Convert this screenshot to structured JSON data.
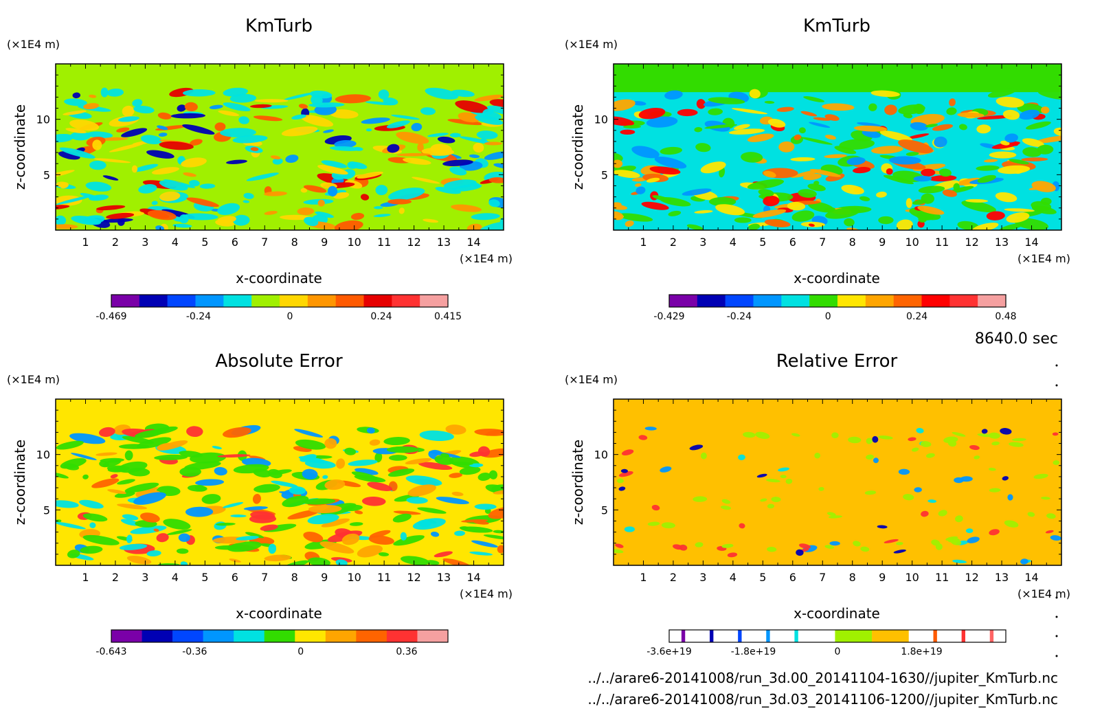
{
  "chart_data": [
    {
      "type": "heatmap",
      "title": "KmTurb",
      "xlabel": "x-coordinate",
      "ylabel": "z-coordinate",
      "x_unit": "(×1E4 m)",
      "y_unit": "(×1E4 m)",
      "xlim": [
        0,
        15
      ],
      "ylim": [
        0,
        15
      ],
      "x_ticks": [
        "1",
        "2",
        "3",
        "4",
        "5",
        "6",
        "7",
        "8",
        "9",
        "10",
        "11",
        "12",
        "13",
        "14"
      ],
      "y_ticks": [
        "5",
        "10"
      ],
      "colorbar": {
        "colors": [
          "#7a00a8",
          "#0000b4",
          "#0046ff",
          "#0096ff",
          "#00e1e1",
          "#a0f000",
          "#ffd700",
          "#ff9600",
          "#ff5a00",
          "#e60000",
          "#ff3232",
          "#f5a0a0"
        ],
        "labels": [
          "-0.469",
          "-0.24",
          "0",
          "0.24",
          "0.415"
        ],
        "range": [
          -0.469,
          0.415
        ]
      },
      "background": "#a0f000",
      "top_band_color": "#a0f000",
      "pattern_colors": [
        "#00e1e1",
        "#ffd700",
        "#ff9600",
        "#ff5a00",
        "#0096ff",
        "#e60000",
        "#0000b4"
      ]
    },
    {
      "type": "heatmap",
      "title": "KmTurb",
      "xlabel": "x-coordinate",
      "ylabel": "z-coordinate",
      "x_unit": "(×1E4 m)",
      "y_unit": "(×1E4 m)",
      "xlim": [
        0,
        15
      ],
      "ylim": [
        0,
        15
      ],
      "x_ticks": [
        "1",
        "2",
        "3",
        "4",
        "5",
        "6",
        "7",
        "8",
        "9",
        "10",
        "11",
        "12",
        "13",
        "14"
      ],
      "y_ticks": [
        "5",
        "10"
      ],
      "colorbar": {
        "colors": [
          "#7a00a8",
          "#0000b4",
          "#0046ff",
          "#0096ff",
          "#00e1e1",
          "#32dc00",
          "#ffe600",
          "#ffa500",
          "#ff6400",
          "#ff0000",
          "#ff3232",
          "#f5a0a0"
        ],
        "labels": [
          "-0.429",
          "-0.24",
          "0",
          "0.24",
          "0.48"
        ],
        "range": [
          -0.429,
          0.48
        ]
      },
      "background": "#00e1e1",
      "top_band_color": "#32dc00",
      "pattern_colors": [
        "#32dc00",
        "#ffe600",
        "#ffa500",
        "#ff6400",
        "#0096ff",
        "#ff0000"
      ]
    },
    {
      "type": "heatmap",
      "title": "Absolute Error",
      "xlabel": "x-coordinate",
      "ylabel": "z-coordinate",
      "x_unit": "(×1E4 m)",
      "y_unit": "(×1E4 m)",
      "xlim": [
        0,
        15
      ],
      "ylim": [
        0,
        15
      ],
      "x_ticks": [
        "1",
        "2",
        "3",
        "4",
        "5",
        "6",
        "7",
        "8",
        "9",
        "10",
        "11",
        "12",
        "13",
        "14"
      ],
      "y_ticks": [
        "5",
        "10"
      ],
      "colorbar": {
        "colors": [
          "#7a00a8",
          "#0000b4",
          "#0046ff",
          "#0096ff",
          "#00e1e1",
          "#32dc00",
          "#ffe600",
          "#ffa500",
          "#ff6400",
          "#ff3232",
          "#f5a0a0"
        ],
        "labels": [
          "-0.643",
          "-0.36",
          "0",
          "0.36"
        ],
        "range": [
          -0.643,
          0.5
        ]
      },
      "background": "#ffe600",
      "top_band_color": "#ffe600",
      "pattern_colors": [
        "#32dc00",
        "#00e1e1",
        "#ffa500",
        "#ff6400",
        "#0096ff",
        "#ff3232"
      ]
    },
    {
      "type": "heatmap",
      "title": "Relative Error",
      "xlabel": "x-coordinate",
      "ylabel": "z-coordinate",
      "x_unit": "(×1E4 m)",
      "y_unit": "(×1E4 m)",
      "xlim": [
        0,
        15
      ],
      "ylim": [
        0,
        15
      ],
      "x_ticks": [
        "1",
        "2",
        "3",
        "4",
        "5",
        "6",
        "7",
        "8",
        "9",
        "10",
        "11",
        "12",
        "13",
        "14"
      ],
      "y_ticks": [
        "5",
        "10"
      ],
      "colorbar": {
        "colors": [
          "#ffffff",
          "#7a00a8",
          "#ffffff",
          "#0000b4",
          "#ffffff",
          "#0046ff",
          "#ffffff",
          "#0096ff",
          "#ffffff",
          "#00e1e1",
          "#ffffff",
          "#a0f000",
          "#ffc000",
          "#ffffff",
          "#ff5a00",
          "#ffffff",
          "#ff3232",
          "#ffffff",
          "#ff6464",
          "#ffffff"
        ],
        "widths": [
          1,
          0.3,
          2,
          0.3,
          2,
          0.3,
          2,
          0.3,
          2,
          0.3,
          3,
          3,
          3,
          2,
          0.3,
          2,
          0.3,
          2,
          0.3,
          1
        ],
        "labels": [
          "-3.6e+19",
          "-1.8e+19",
          "0",
          "1.8e+19"
        ],
        "range": [
          -3.6e+19,
          3.6e+19
        ]
      },
      "background": "#ffc000",
      "top_band_color": "#ffc000",
      "pattern_colors": [
        "#a0f000",
        "#0096ff",
        "#0000b4",
        "#ff3232",
        "#00e1e1"
      ]
    }
  ],
  "time_label": "8640.0 sec",
  "footer": [
    "../../arare6-20141008/run_3d.00_20141104-1630//jupiter_KmTurb.nc",
    "../../arare6-20141008/run_3d.03_20141106-1200//jupiter_KmTurb.nc"
  ]
}
